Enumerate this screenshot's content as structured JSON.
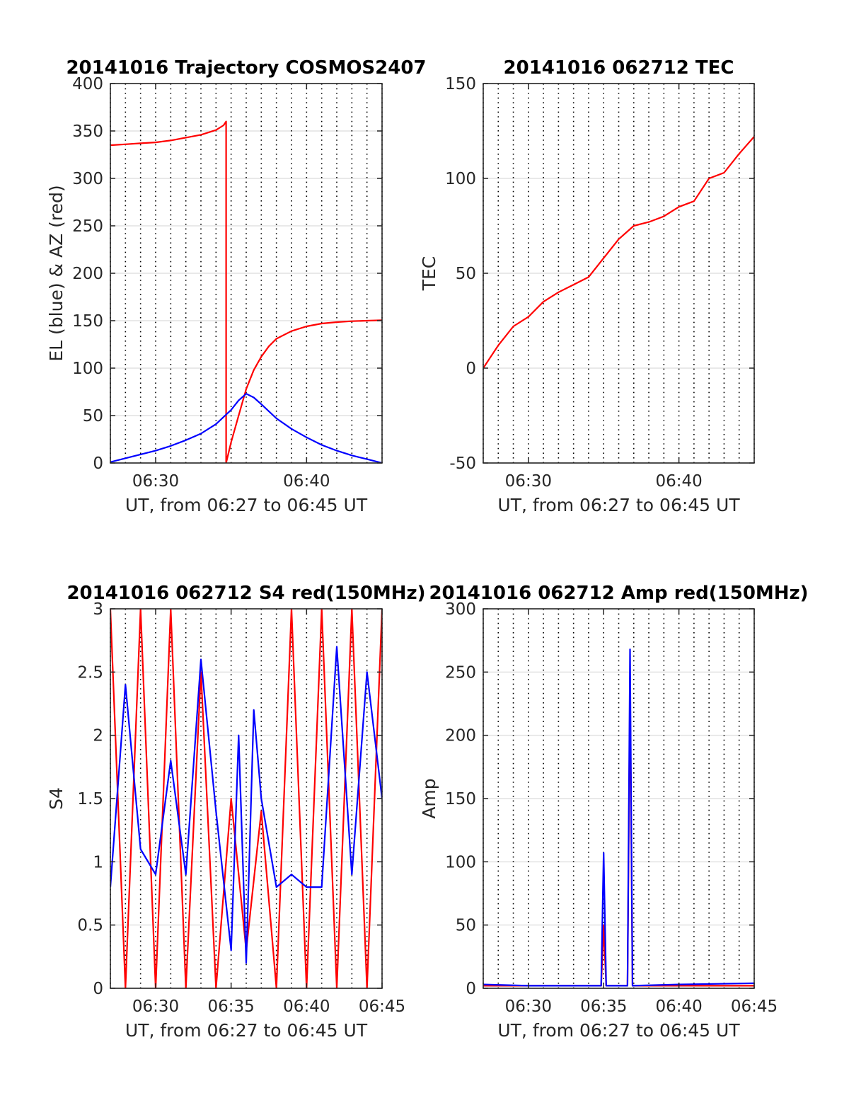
{
  "chart_data": [
    {
      "type": "line",
      "title": "20141016 Trajectory COSMOS2407",
      "xlabel": "UT, from 06:27 to 06:45 UT",
      "ylabel": "EL (blue) & AZ (red)",
      "xlim": [
        "06:27",
        "06:45"
      ],
      "ylim": [
        0,
        400
      ],
      "xticks": [
        "06:30",
        "06:40"
      ],
      "yticks": [
        "0",
        "50",
        "100",
        "150",
        "200",
        "250",
        "300",
        "350",
        "400"
      ],
      "grid": true,
      "series": [
        {
          "color": "#ff0000",
          "x": [
            "06:27",
            "06:28",
            "06:29",
            "06:30",
            "06:31",
            "06:32",
            "06:33",
            "06:34",
            "06:34:30",
            "06:34:40",
            "06:34:40",
            "06:35",
            "06:35:30",
            "06:36",
            "06:36:30",
            "06:37",
            "06:37:30",
            "06:38",
            "06:39",
            "06:40",
            "06:41",
            "06:42",
            "06:43",
            "06:44",
            "06:45"
          ],
          "values": [
            335,
            336,
            337,
            338,
            340,
            343,
            346,
            351,
            356,
            360,
            0,
            22,
            50,
            78,
            98,
            112,
            123,
            131,
            139,
            144,
            147,
            148.5,
            149.5,
            150,
            150.5
          ]
        },
        {
          "color": "#0000ff",
          "x": [
            "06:27",
            "06:28",
            "06:29",
            "06:30",
            "06:31",
            "06:32",
            "06:33",
            "06:34",
            "06:35",
            "06:35:30",
            "06:36",
            "06:36:30",
            "06:37",
            "06:38",
            "06:39",
            "06:40",
            "06:41",
            "06:42",
            "06:43",
            "06:44",
            "06:45"
          ],
          "values": [
            1,
            5,
            9,
            13,
            18,
            24,
            31,
            41,
            56,
            66,
            73,
            69,
            62,
            47,
            36,
            27,
            19,
            13,
            8,
            4,
            0
          ]
        }
      ]
    },
    {
      "type": "line",
      "title": "20141016 062712 TEC",
      "xlabel": "UT, from 06:27 to 06:45 UT",
      "ylabel": "TEC",
      "xlim": [
        "06:27",
        "06:45"
      ],
      "ylim": [
        -50,
        150
      ],
      "xticks": [
        "06:30",
        "06:40"
      ],
      "yticks": [
        "-50",
        "0",
        "50",
        "100",
        "150"
      ],
      "grid": true,
      "series": [
        {
          "color": "#ff0000",
          "x": [
            "06:27",
            "06:28",
            "06:29",
            "06:30",
            "06:31",
            "06:32",
            "06:33",
            "06:34",
            "06:35",
            "06:36",
            "06:37",
            "06:38",
            "06:39",
            "06:40",
            "06:41",
            "06:42",
            "06:43",
            "06:44",
            "06:45"
          ],
          "values": [
            0,
            12,
            22,
            27,
            35,
            40,
            44,
            48,
            58,
            68,
            75,
            77,
            80,
            85,
            88,
            100,
            103,
            113,
            122
          ]
        }
      ]
    },
    {
      "type": "line",
      "title": "20141016 062712 S4 red(150MHz)",
      "xlabel": "UT, from 06:27 to 06:45 UT",
      "ylabel": "S4",
      "xlim": [
        "06:27",
        "06:45"
      ],
      "ylim": [
        0,
        3
      ],
      "xticks": [
        "06:30",
        "06:35",
        "06:40",
        "06:45"
      ],
      "yticks": [
        "0",
        "0.5",
        "1",
        "1.5",
        "2",
        "2.5",
        "3"
      ],
      "grid": true,
      "series": [
        {
          "color": "#ff0000",
          "x": [
            "06:27",
            "06:28",
            "06:29",
            "06:30",
            "06:31",
            "06:32",
            "06:33",
            "06:34",
            "06:35",
            "06:36",
            "06:37",
            "06:38",
            "06:39",
            "06:40",
            "06:41",
            "06:42",
            "06:43",
            "06:44",
            "06:45"
          ],
          "values": [
            3,
            0,
            3,
            0,
            3,
            0,
            2.5,
            0,
            1.5,
            0.3,
            1.4,
            0,
            3,
            0,
            3,
            0,
            3,
            0,
            3
          ]
        },
        {
          "color": "#0000ff",
          "x": [
            "06:27",
            "06:28",
            "06:29",
            "06:30",
            "06:31",
            "06:32",
            "06:33",
            "06:34",
            "06:35",
            "06:35:30",
            "06:36",
            "06:36:30",
            "06:37",
            "06:38",
            "06:39",
            "06:40",
            "06:41",
            "06:42",
            "06:43",
            "06:44",
            "06:45"
          ],
          "values": [
            0.8,
            2.4,
            1.1,
            0.9,
            1.8,
            0.9,
            2.6,
            1.4,
            0.3,
            2.0,
            0.2,
            2.2,
            1.5,
            0.8,
            0.9,
            0.8,
            0.8,
            2.7,
            0.9,
            2.5,
            1.5
          ]
        }
      ]
    },
    {
      "type": "line",
      "title": "20141016 062712 Amp red(150MHz)",
      "xlabel": "UT, from 06:27 to 06:45 UT",
      "ylabel": "Amp",
      "xlim": [
        "06:27",
        "06:45"
      ],
      "ylim": [
        0,
        300
      ],
      "xticks": [
        "06:30",
        "06:35",
        "06:40",
        "06:45"
      ],
      "yticks": [
        "0",
        "50",
        "100",
        "150",
        "200",
        "250",
        "300"
      ],
      "grid": true,
      "series": [
        {
          "color": "#ff0000",
          "x": [
            "06:27",
            "06:34:50",
            "06:35",
            "06:35:10",
            "06:36:35",
            "06:36:45",
            "06:36:55",
            "06:45"
          ],
          "values": [
            2,
            2,
            50,
            2,
            2,
            240,
            2,
            2
          ]
        },
        {
          "color": "#0000ff",
          "x": [
            "06:27",
            "06:30",
            "06:34:50",
            "06:35",
            "06:35:10",
            "06:36:35",
            "06:36:45",
            "06:36:55",
            "06:40",
            "06:45"
          ],
          "values": [
            3,
            2,
            2,
            107,
            2,
            2,
            268,
            2,
            3,
            4
          ]
        }
      ]
    }
  ]
}
